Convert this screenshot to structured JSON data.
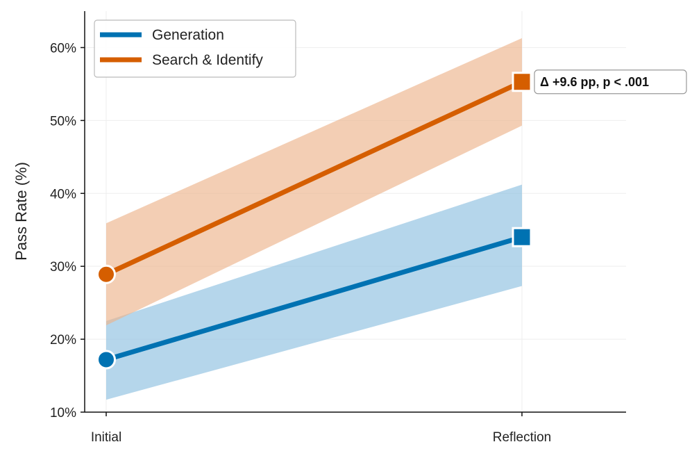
{
  "chart_data": {
    "type": "line",
    "title": "",
    "xlabel": "",
    "ylabel": "Pass Rate (%)",
    "categories": [
      "Initial",
      "Reflection"
    ],
    "ylim": [
      10,
      65
    ],
    "yticks": [
      10,
      20,
      30,
      40,
      50,
      60
    ],
    "ytick_labels": [
      "10%",
      "20%",
      "30%",
      "40%",
      "50%",
      "60%"
    ],
    "grid": true,
    "legend": {
      "placement": "top-left"
    },
    "series": [
      {
        "name": "Generation",
        "color": "#0072B2",
        "band_color": "#8ec0e0",
        "values": [
          17.2,
          34.0
        ],
        "ci_lower": [
          11.7,
          27.3
        ],
        "ci_upper": [
          22.5,
          41.2
        ],
        "markers": [
          "circle",
          "square"
        ]
      },
      {
        "name": "Search & Identify",
        "color": "#D55E00",
        "band_color": "#ecb48c",
        "values": [
          28.9,
          55.3
        ],
        "ci_lower": [
          21.9,
          49.3
        ],
        "ci_upper": [
          35.9,
          61.3
        ],
        "markers": [
          "circle",
          "square"
        ]
      }
    ],
    "annotations": [
      {
        "text": "Δ +9.6 pp, p < .001",
        "series": "Search & Identify",
        "category": "Reflection"
      }
    ]
  }
}
